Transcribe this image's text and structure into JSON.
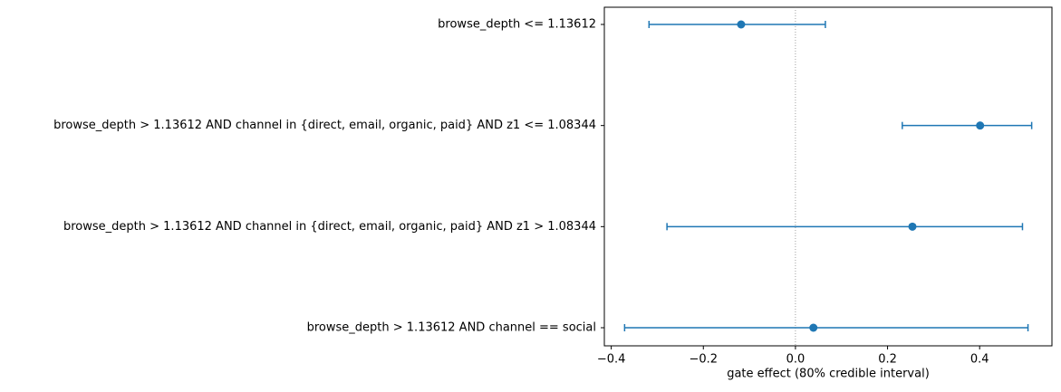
{
  "chart_data": {
    "type": "errorbar",
    "x_label": "gate effect (80% credible interval)",
    "categories": [
      "browse_depth <= 1.13612",
      "browse_depth > 1.13612 AND channel in {direct, email, organic, paid} AND z1 <= 1.08344",
      "browse_depth > 1.13612 AND channel in {direct, email, organic, paid} AND z1 > 1.08344",
      "browse_depth > 1.13612 AND channel == social"
    ],
    "values": [
      -0.118,
      0.401,
      0.254,
      0.039
    ],
    "low": [
      -0.318,
      0.232,
      -0.279,
      -0.371
    ],
    "high": [
      0.065,
      0.513,
      0.493,
      0.505
    ],
    "color": "#1f77b4",
    "xlim": [
      -0.415,
      0.557
    ],
    "xticks": [
      {
        "value": -0.4,
        "label": "−0.4"
      },
      {
        "value": -0.2,
        "label": "−0.2"
      },
      {
        "value": 0,
        "label": "0.0"
      },
      0.2,
      0.4
    ],
    "reference_line": 0
  }
}
